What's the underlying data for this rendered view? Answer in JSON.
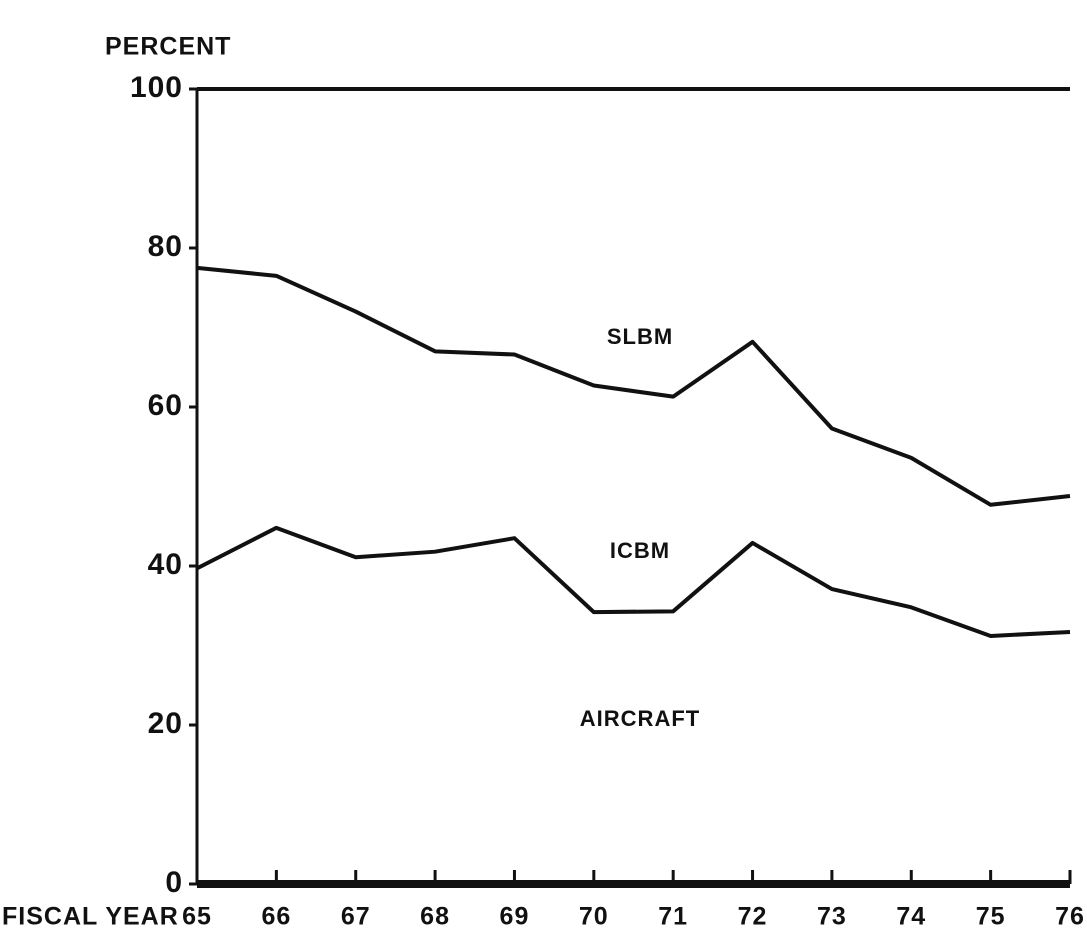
{
  "chart_data": {
    "type": "stacked_line",
    "y_axis_label": "PERCENT",
    "x_axis_label": "FISCAL YEAR",
    "categories": [
      "65",
      "66",
      "67",
      "68",
      "69",
      "70",
      "71",
      "72",
      "73",
      "74",
      "75",
      "76"
    ],
    "series": [
      {
        "name": "AIRCRAFT",
        "color": "#111111",
        "values": [
          39.7,
          44.8,
          41.1,
          41.8,
          43.5,
          34.2,
          34.3,
          42.9,
          37.1,
          34.8,
          31.2,
          31.7
        ]
      },
      {
        "name": "ICBM",
        "color": "#111111",
        "values": [
          37.8,
          31.7,
          30.9,
          25.2,
          23.1,
          28.5,
          27.0,
          25.3,
          20.2,
          18.8,
          16.5,
          17.1
        ]
      },
      {
        "name": "SLBM",
        "color": "#111111",
        "values": [
          22.5,
          23.5,
          28.0,
          33.0,
          33.4,
          37.3,
          38.7,
          31.8,
          42.7,
          46.4,
          52.3,
          51.2
        ]
      }
    ],
    "ylim": [
      0,
      100
    ],
    "yticks": [
      0,
      20,
      40,
      60,
      80,
      100
    ],
    "grid": false
  }
}
